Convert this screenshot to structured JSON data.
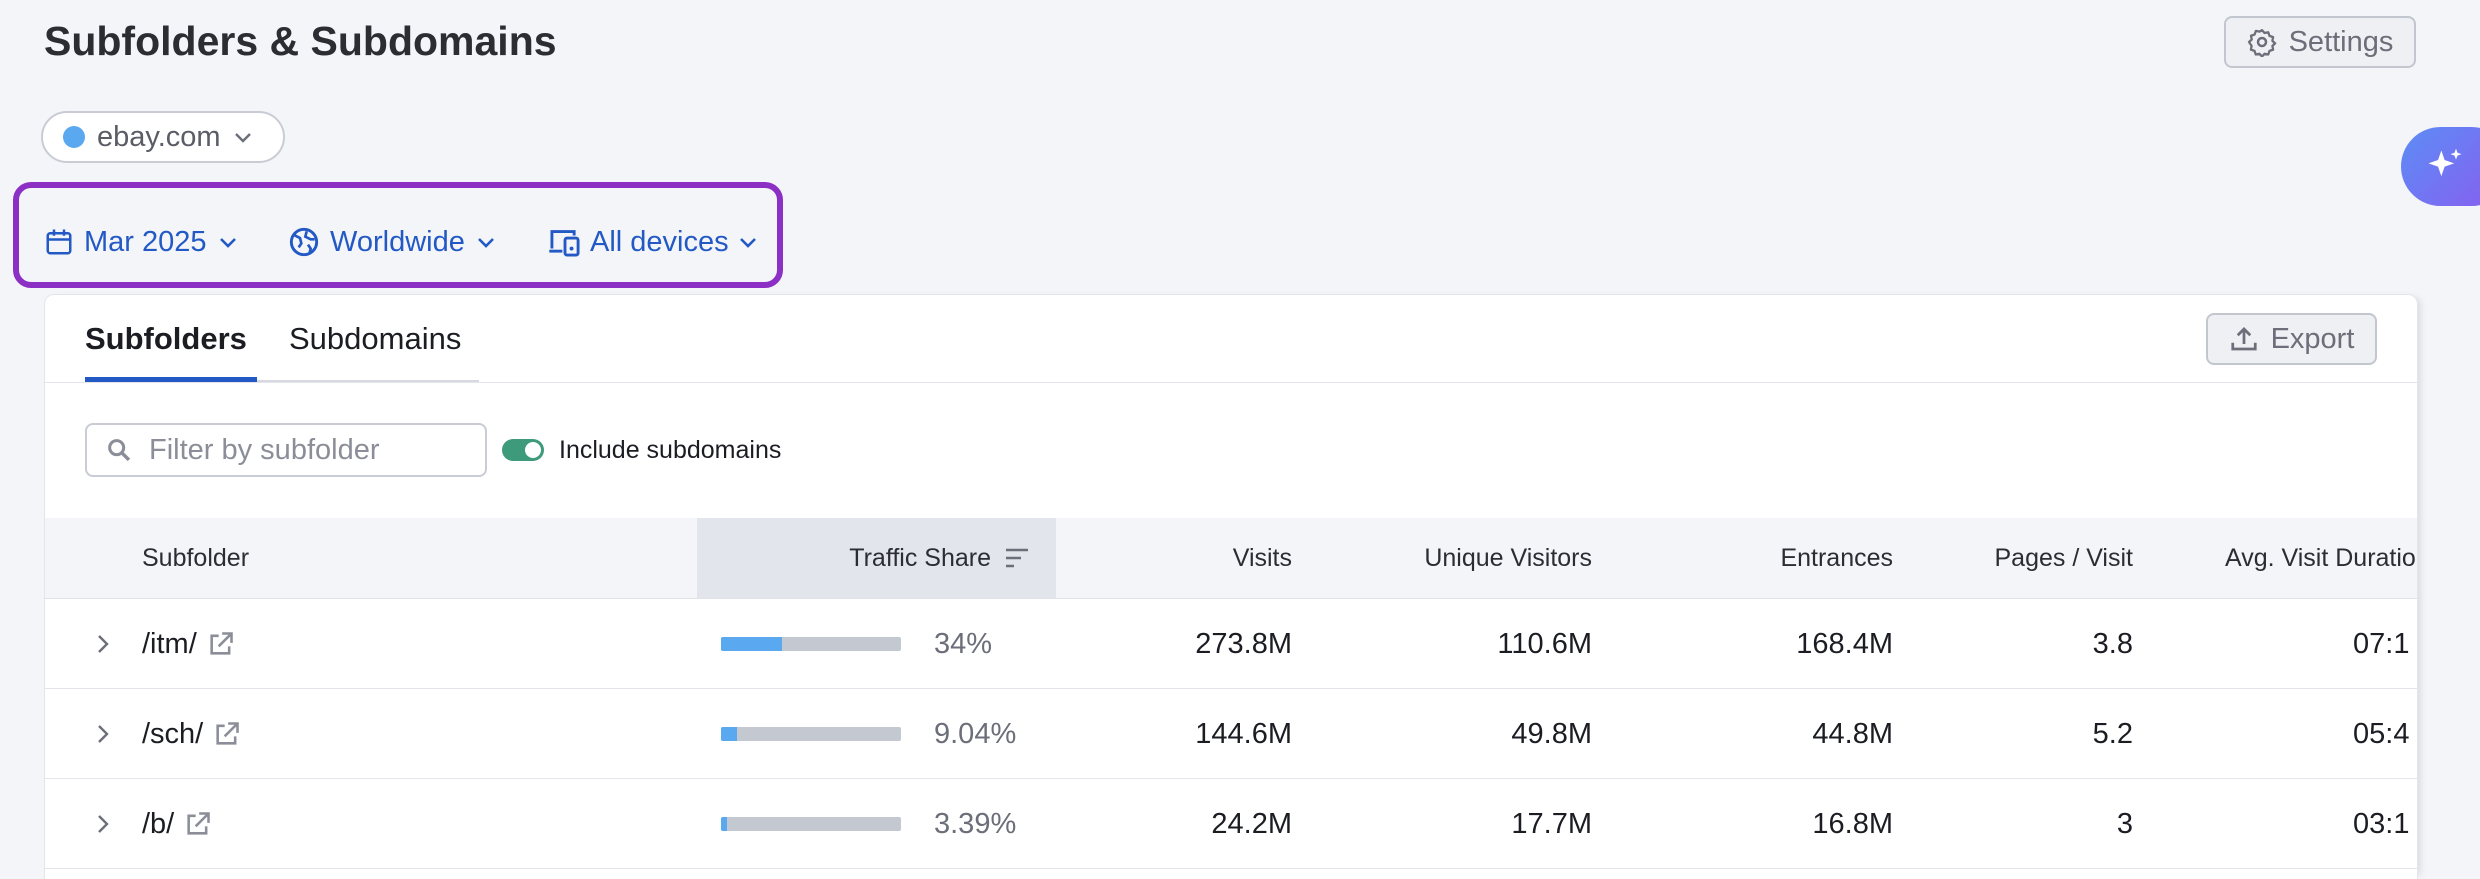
{
  "header": {
    "title": "Subfolders & Subdomains",
    "settings": "Settings"
  },
  "domain": "ebay.com",
  "filters": {
    "date": "Mar 2025",
    "region": "Worldwide",
    "device": "All devices"
  },
  "tabs": [
    "Subfolders",
    "Subdomains"
  ],
  "export": "Export",
  "filter_placeholder": "Filter by subfolder",
  "toggle_label": "Include subdomains",
  "table": {
    "columns": [
      "Subfolder",
      "Traffic Share",
      "Visits",
      "Unique Visitors",
      "Entrances",
      "Pages / Visit",
      "Avg. Visit Duratio"
    ],
    "rows": [
      [
        "/itm/",
        {
          "value": 34,
          "label": "34%"
        },
        "273.8M",
        "110.6M",
        "168.4M",
        3.8,
        "07:1"
      ],
      [
        "/sch/",
        {
          "value": 9.04,
          "label": "9.04%"
        },
        "144.6M",
        "49.8M",
        "44.8M",
        5.2,
        "05:4"
      ],
      [
        "/b/",
        {
          "value": 3.39,
          "label": "3.39%"
        },
        "24.2M",
        "17.7M",
        "16.8M",
        3,
        "03:1"
      ]
    ]
  }
}
